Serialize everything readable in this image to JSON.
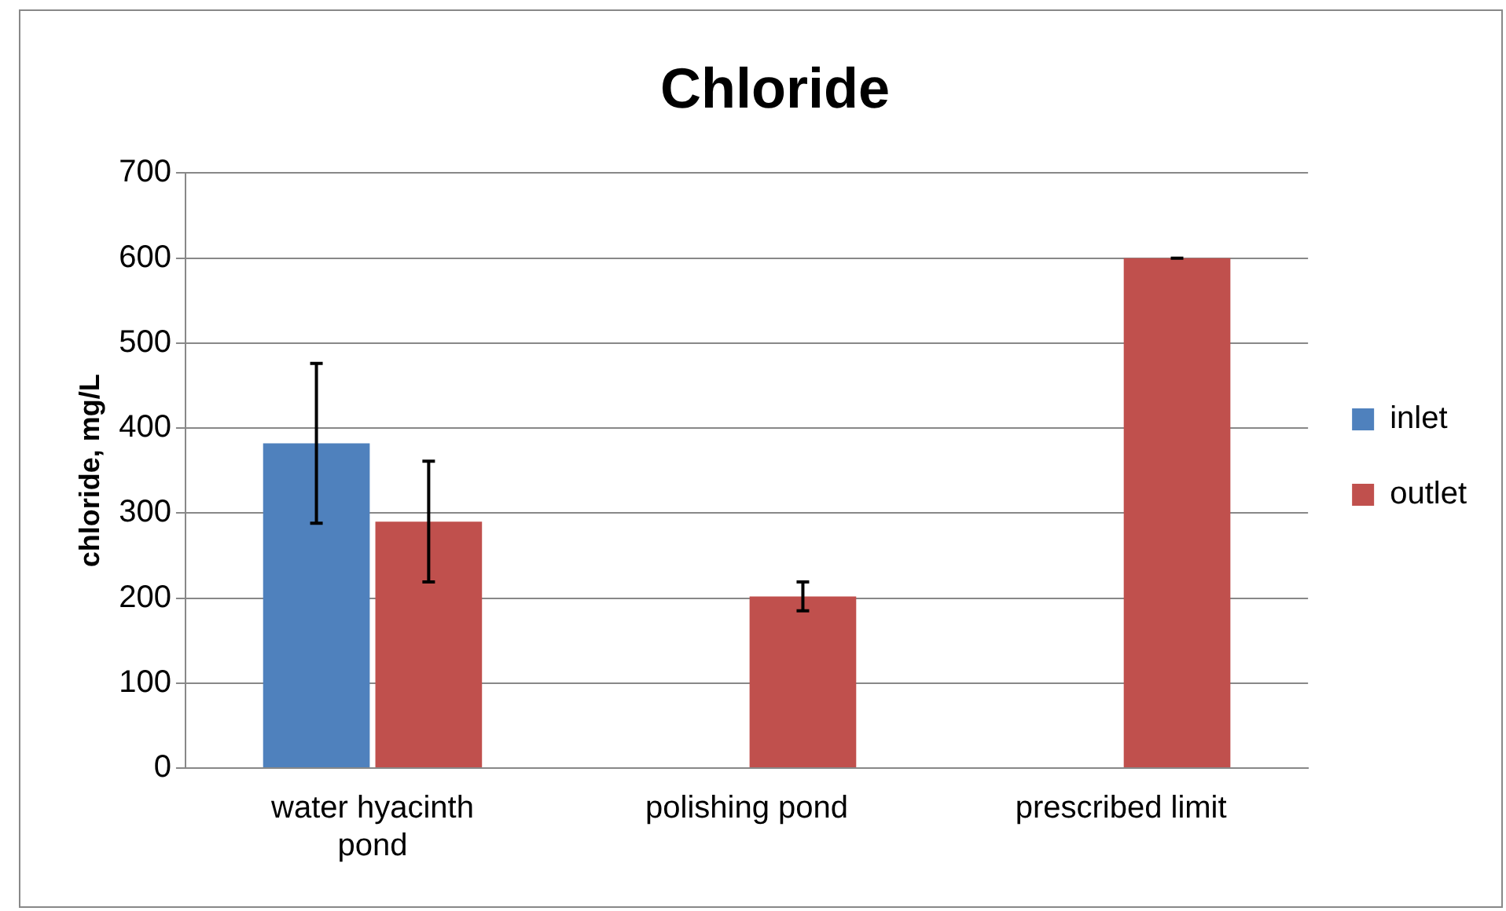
{
  "chart_data": {
    "type": "bar",
    "title": "Chloride",
    "ylabel": "chloride, mg/L",
    "categories": [
      "water hyacinth pond",
      "polishing pond",
      "prescribed limit"
    ],
    "series": [
      {
        "name": "inlet",
        "color": "#4f81bd",
        "values": [
          382,
          null,
          null
        ],
        "errors": [
          94,
          null,
          null
        ]
      },
      {
        "name": "outlet",
        "color": "#c0504d",
        "values": [
          290,
          202,
          600
        ],
        "errors": [
          71,
          17,
          0
        ]
      }
    ],
    "ylim": [
      0,
      700
    ],
    "yticks": [
      0,
      100,
      200,
      300,
      400,
      500,
      600,
      700
    ],
    "grid": "y",
    "legend": "right"
  }
}
